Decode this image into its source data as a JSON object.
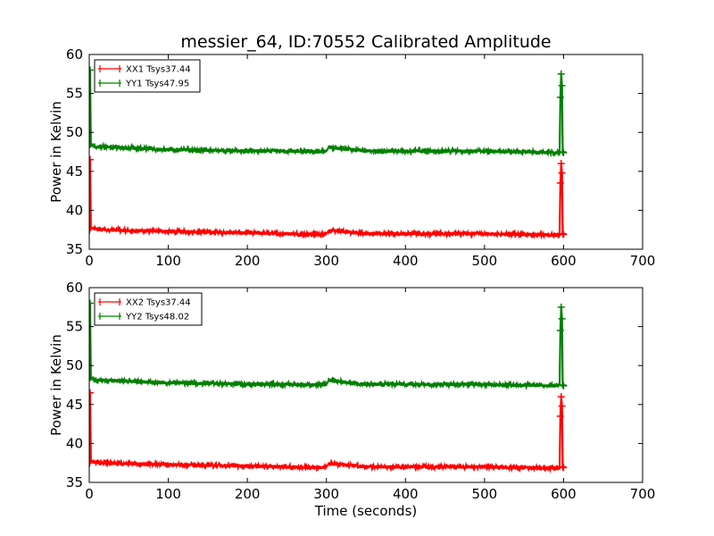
{
  "title": "messier_64, ID:70552 Calibrated Amplitude",
  "xlabel": "Time (seconds)",
  "colors": {
    "red": "#ff0000",
    "green": "#008000",
    "frame": "#000000",
    "background": "#ffffff"
  },
  "chart_data": [
    {
      "type": "line",
      "title": "messier_64, ID:70552 Calibrated Amplitude",
      "xlabel": "",
      "ylabel": "Power in Kelvin",
      "xlim": [
        0,
        700
      ],
      "ylim": [
        35,
        60
      ],
      "xticks": [
        "0",
        "100",
        "200",
        "300",
        "400",
        "500",
        "600",
        "700"
      ],
      "yticks": [
        "35",
        "40",
        "45",
        "50",
        "55",
        "60"
      ],
      "grid": false,
      "legend_position": "top-left",
      "series": [
        {
          "name": "XX1 Tsys37.44",
          "color": "#ff0000",
          "x": [
            0,
            1,
            2,
            5,
            20,
            50,
            100,
            150,
            200,
            250,
            290,
            300,
            303,
            320,
            350,
            400,
            450,
            500,
            550,
            595,
            596,
            597,
            598,
            599,
            600
          ],
          "values": [
            37.0,
            46.5,
            37.8,
            37.6,
            37.5,
            37.4,
            37.3,
            37.2,
            37.1,
            37.0,
            36.9,
            37.0,
            37.4,
            37.3,
            37.0,
            37.0,
            37.0,
            37.0,
            36.9,
            36.8,
            43.5,
            46.0,
            44.8,
            37.0,
            36.9
          ]
        },
        {
          "name": "YY1 Tsys47.95",
          "color": "#008000",
          "x": [
            0,
            1,
            2,
            5,
            20,
            50,
            100,
            150,
            200,
            250,
            290,
            300,
            303,
            320,
            350,
            400,
            450,
            500,
            550,
            595,
            596,
            597,
            598,
            599,
            600
          ],
          "values": [
            48.0,
            58.0,
            48.5,
            48.2,
            48.1,
            48.0,
            47.8,
            47.7,
            47.6,
            47.6,
            47.5,
            47.6,
            48.1,
            47.9,
            47.6,
            47.6,
            47.6,
            47.6,
            47.5,
            47.4,
            54.5,
            57.5,
            56.0,
            47.5,
            47.4
          ]
        }
      ]
    },
    {
      "type": "line",
      "title": "",
      "xlabel": "Time (seconds)",
      "ylabel": "Power in Kelvin",
      "xlim": [
        0,
        700
      ],
      "ylim": [
        35,
        60
      ],
      "xticks": [
        "0",
        "100",
        "200",
        "300",
        "400",
        "500",
        "600",
        "700"
      ],
      "yticks": [
        "35",
        "40",
        "45",
        "50",
        "55",
        "60"
      ],
      "grid": false,
      "legend_position": "top-left",
      "series": [
        {
          "name": "XX2 Tsys37.44",
          "color": "#ff0000",
          "x": [
            0,
            1,
            2,
            5,
            20,
            50,
            100,
            150,
            200,
            250,
            290,
            300,
            303,
            320,
            350,
            400,
            450,
            500,
            550,
            595,
            596,
            597,
            598,
            599,
            600
          ],
          "values": [
            37.0,
            46.5,
            37.8,
            37.6,
            37.5,
            37.4,
            37.3,
            37.2,
            37.1,
            37.0,
            36.9,
            37.0,
            37.4,
            37.3,
            37.0,
            37.0,
            37.0,
            37.0,
            36.9,
            36.8,
            43.5,
            46.0,
            44.8,
            37.0,
            36.9
          ]
        },
        {
          "name": "YY2 Tsys48.02",
          "color": "#008000",
          "x": [
            0,
            1,
            2,
            5,
            20,
            50,
            100,
            150,
            200,
            250,
            290,
            300,
            303,
            320,
            350,
            400,
            450,
            500,
            550,
            595,
            596,
            597,
            598,
            599,
            600
          ],
          "values": [
            48.0,
            58.0,
            48.5,
            48.2,
            48.1,
            48.0,
            47.8,
            47.7,
            47.6,
            47.6,
            47.5,
            47.6,
            48.1,
            47.9,
            47.6,
            47.6,
            47.6,
            47.6,
            47.5,
            47.4,
            54.5,
            57.5,
            56.0,
            47.5,
            47.4
          ]
        }
      ]
    }
  ]
}
